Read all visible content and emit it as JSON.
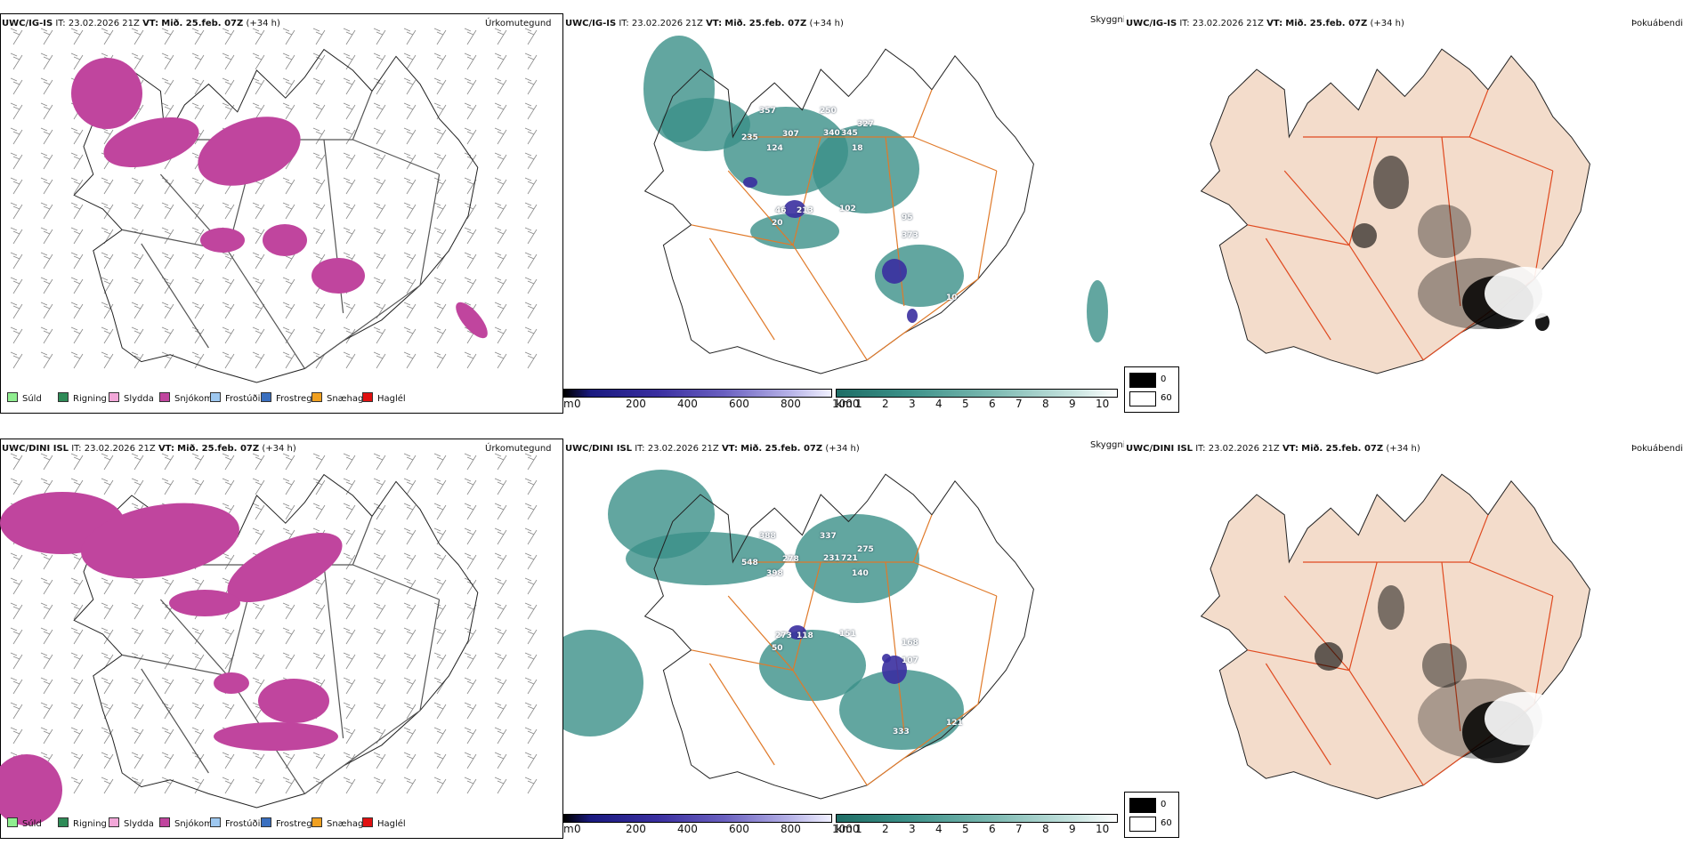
{
  "rows": [
    {
      "precip": {
        "model": "UWC/IG-IS",
        "it": "IT: 23.02.2026 21Z",
        "vt_label": "VT:",
        "vt": "Mið. 25.feb. 07Z",
        "lead": "(+34 h)",
        "var": "Úrkomutegund"
      },
      "vis": {
        "model": "UWC/IG-IS",
        "it": "IT: 23.02.2026 21Z",
        "vt_label": "VT:",
        "vt": "Mið. 25.feb. 07Z",
        "lead": "(+34 h)",
        "var": "Skyggni",
        "labels": [
          "357",
          "250",
          "327",
          "235",
          "307",
          "340",
          "345",
          "124",
          "18",
          "46",
          "213",
          "102",
          "20",
          "95",
          "373",
          "10"
        ]
      },
      "fog": {
        "model": "UWC/IG-IS",
        "it": "IT: 23.02.2026 21Z",
        "vt_label": "VT:",
        "vt": "Mið. 25.feb. 07Z",
        "lead": "(+34 h)",
        "var": "Þokuábendi"
      }
    },
    {
      "precip": {
        "model": "UWC/DINI ISL",
        "it": "IT: 23.02.2026 21Z",
        "vt_label": "VT:",
        "vt": "Mið. 25.feb. 07Z",
        "lead": "(+34 h)",
        "var": "Úrkomutegund"
      },
      "vis": {
        "model": "UWC/DINI ISL",
        "it": "IT: 23.02.2026 21Z",
        "vt_label": "VT:",
        "vt": "Mið. 25.feb. 07Z",
        "lead": "(+34 h)",
        "var": "Skyggni",
        "labels": [
          "388",
          "337",
          "275",
          "548",
          "278",
          "231",
          "721",
          "398",
          "140",
          "273",
          "118",
          "151",
          "50",
          "168",
          "107",
          "121",
          "333"
        ]
      },
      "fog": {
        "model": "UWC/DINI ISL",
        "it": "IT: 23.02.2026 21Z",
        "vt_label": "VT:",
        "vt": "Mið. 25.feb. 07Z",
        "lead": "(+34 h)",
        "var": "Þokuábendi"
      }
    }
  ],
  "precip_legend": [
    {
      "label": "Súld",
      "color": "#90ee90"
    },
    {
      "label": "Rigning",
      "color": "#2e8b57"
    },
    {
      "label": "Slydda",
      "color": "#f2a7d8"
    },
    {
      "label": "Snjókoma",
      "color": "#c0459e"
    },
    {
      "label": "Frostúði",
      "color": "#9ec8f0"
    },
    {
      "label": "Frostregn",
      "color": "#3a6fbf"
    },
    {
      "label": "Snæhagl",
      "color": "#f0a020"
    },
    {
      "label": "Haglél",
      "color": "#e01010"
    }
  ],
  "ceiling_scale": {
    "unit": "m",
    "ticks": [
      "0",
      "200",
      "400",
      "600",
      "800",
      "1000"
    ]
  },
  "vis_scale": {
    "unit": "km",
    "ticks": [
      "1",
      "2",
      "3",
      "4",
      "5",
      "6",
      "7",
      "8",
      "9",
      "10"
    ]
  },
  "fog_legend": {
    "high": "0",
    "low": "60"
  },
  "colors": {
    "snow": "#c0459e",
    "vis": "#3b9088",
    "ceiling": "#3a2fa0",
    "road_orange": "#e07a2a",
    "road_red": "#e04a20",
    "land_fog": "#f3dccb",
    "river": "#7a8ef0"
  }
}
